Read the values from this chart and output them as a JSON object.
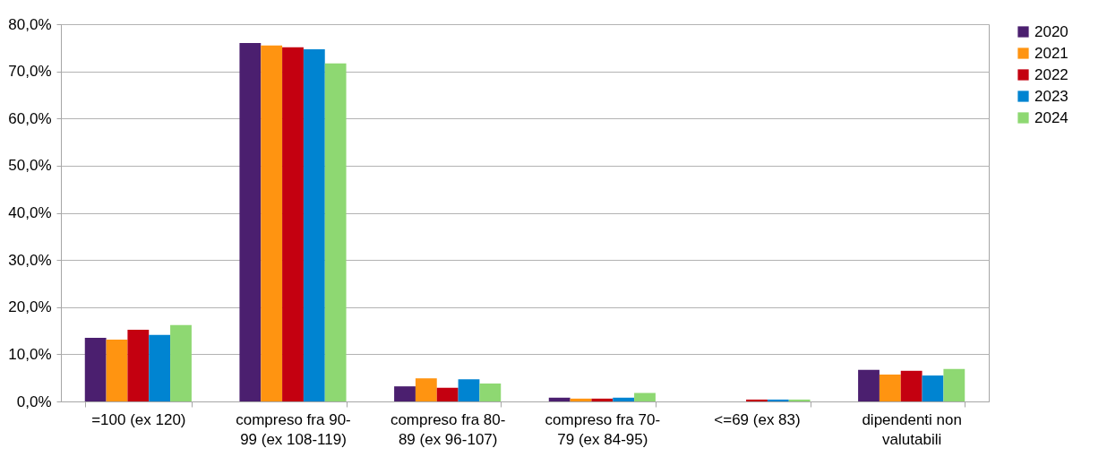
{
  "chart_data": {
    "type": "bar",
    "categories": [
      "=100 (ex 120)",
      "compreso fra 90-99 (ex 108-119)",
      "compreso fra 80-89 (ex 96-107)",
      "compreso fra 70-79 (ex 84-95)",
      "<=69 (ex 83)",
      "dipendenti non valutabili"
    ],
    "series": [
      {
        "name": "2020",
        "color": "#4b1f6f",
        "values": [
          13.5,
          76.0,
          3.2,
          0.8,
          0,
          6.7
        ]
      },
      {
        "name": "2021",
        "color": "#ff9411",
        "values": [
          13.1,
          75.5,
          4.9,
          0.6,
          0,
          5.7
        ]
      },
      {
        "name": "2022",
        "color": "#c40010",
        "values": [
          15.2,
          75.1,
          2.9,
          0.6,
          0.4,
          6.5
        ]
      },
      {
        "name": "2023",
        "color": "#0084d1",
        "values": [
          14.1,
          74.7,
          4.7,
          0.8,
          0.4,
          5.5
        ]
      },
      {
        "name": "2024",
        "color": "#8ed872",
        "values": [
          16.2,
          71.7,
          3.8,
          1.8,
          0.4,
          6.9
        ]
      }
    ],
    "ylim": [
      0,
      80
    ],
    "yticks": [
      {
        "value": 0,
        "label": "0,0%"
      },
      {
        "value": 10,
        "label": "10,0%"
      },
      {
        "value": 20,
        "label": "20,0%"
      },
      {
        "value": 30,
        "label": "30,0%"
      },
      {
        "value": 40,
        "label": "40,0%"
      },
      {
        "value": 50,
        "label": "50,0%"
      },
      {
        "value": 60,
        "label": "60,0%"
      },
      {
        "value": 70,
        "label": "70,0%"
      },
      {
        "value": 80,
        "label": "80,0%"
      }
    ],
    "grid": "y",
    "legend": "right"
  }
}
